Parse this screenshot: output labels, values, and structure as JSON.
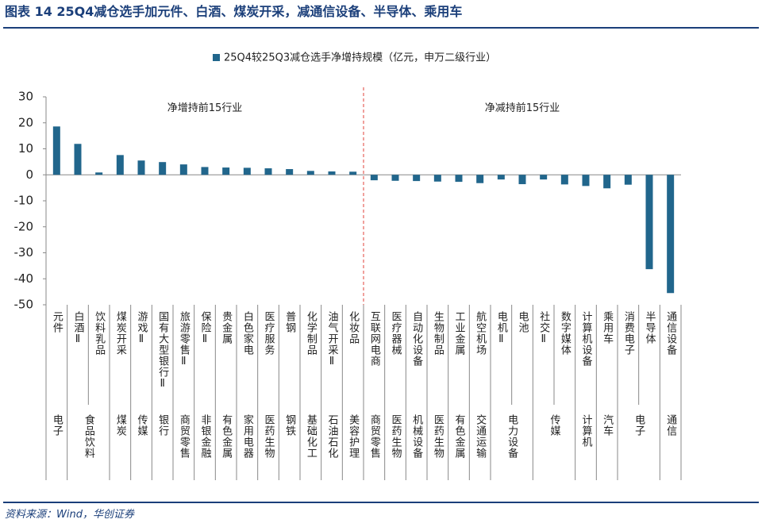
{
  "chart_data": {
    "type": "bar",
    "title": "图表 14   25Q4减仓选手加元件、白酒、煤炭开采，减通信设备、半导体、乘用车",
    "source": "资料来源：Wind，华创证券",
    "annotations": [
      "净增持前15行业",
      "净减持前15行业"
    ],
    "categories": [
      "元件",
      "白酒Ⅱ",
      "饮料乳品",
      "煤炭开采",
      "游戏Ⅱ",
      "国有大型银行Ⅱ",
      "旅游零售Ⅱ",
      "保险Ⅱ",
      "贵金属",
      "白色家电",
      "医疗服务",
      "普钢",
      "化学制品",
      "油气开采Ⅱ",
      "化妆品",
      "互联网电商",
      "医疗器械",
      "自动化设备",
      "生物制品",
      "工业金属",
      "航空机场",
      "电机Ⅱ",
      "电池",
      "社交Ⅱ",
      "数字媒体",
      "计算机设备",
      "乘用车",
      "消费电子",
      "半导体",
      "通信设备"
    ],
    "group_labels": [
      "电子",
      "食品饮料",
      null,
      "煤炭",
      "传媒",
      "银行",
      "商贸零售",
      "非银金融",
      "有色金属",
      "家用电器",
      "医药生物",
      "钢铁",
      "基础化工",
      "石油石化",
      "美容护理",
      "商贸零售",
      "医药生物",
      "机械设备",
      "医药生物",
      "有色金属",
      "交通运输",
      "电力设备",
      null,
      "传媒",
      null,
      "计算机",
      "汽车",
      "电子",
      null,
      "通信"
    ],
    "series": [
      {
        "name": "25Q4较25Q3减仓选手净增持规模（亿元，申万二级行业）",
        "color": "#21668c",
        "values": [
          18.6,
          11.9,
          0.9,
          7.6,
          5.5,
          4.9,
          4.0,
          3.0,
          2.8,
          2.7,
          2.5,
          2.2,
          1.5,
          1.3,
          1.2,
          -2.1,
          -2.3,
          -2.4,
          -2.6,
          -2.7,
          -3.2,
          -1.8,
          -3.6,
          -1.8,
          -3.7,
          -4.3,
          -5.2,
          -3.8,
          -36.3,
          -45.5
        ]
      }
    ],
    "ylim": [
      -50,
      30
    ],
    "yticks": [
      -50,
      -40,
      -30,
      -20,
      -10,
      0,
      10,
      20,
      30
    ],
    "divider_color": "#e0403a"
  }
}
